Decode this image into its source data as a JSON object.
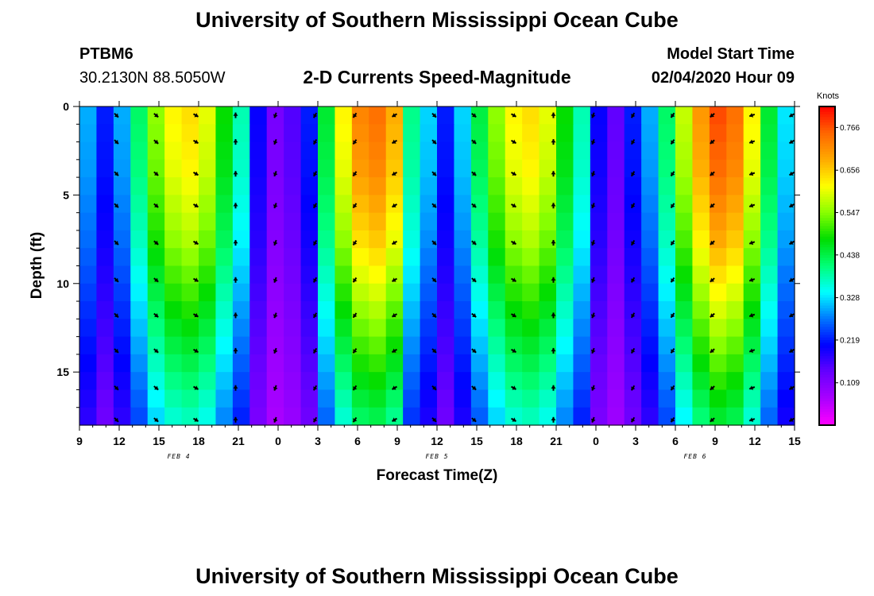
{
  "header": {
    "title": "University of Southern Mississippi Ocean Cube",
    "station_id": "PTBM6",
    "station_coords": "30.2130N 88.5050W",
    "plot_title": "2-D Currents Speed-Magnitude",
    "model_start_label": "Model Start Time",
    "model_start_value": "02/04/2020 Hour 09"
  },
  "footer": {
    "title": "University of Southern Mississippi Ocean Cube"
  },
  "colors": {
    "palette": [
      "#ff00ff",
      "#aa00ff",
      "#6600ff",
      "#0000ff",
      "#0077ff",
      "#00ffff",
      "#00ff77",
      "#00dd00",
      "#88ff00",
      "#ffff00",
      "#ffaa00",
      "#ff6600",
      "#ff0000"
    ]
  },
  "chart_data": {
    "type": "heatmap",
    "title": "2-D Currents Speed-Magnitude",
    "xlabel": "Forecast Time(Z)",
    "ylabel": "Depth (ft)",
    "x_ticks": [
      "9",
      "12",
      "15",
      "18",
      "21",
      "0",
      "3",
      "6",
      "9",
      "12",
      "15",
      "18",
      "21",
      "0",
      "3",
      "6",
      "9",
      "12",
      "15"
    ],
    "x_range_hours": [
      0,
      54
    ],
    "date_labels": [
      {
        "text": "FEB 4",
        "hour": 7.5
      },
      {
        "text": "FEB 5",
        "hour": 27
      },
      {
        "text": "FEB 6",
        "hour": 46.5
      }
    ],
    "y_ticks": [
      0,
      5,
      10,
      15
    ],
    "ylim": [
      0,
      18
    ],
    "colorbar": {
      "unit": "Knots",
      "min": 0.0,
      "max": 0.82,
      "ticks": [
        0.109,
        0.219,
        0.328,
        0.438,
        0.547,
        0.656,
        0.766
      ]
    },
    "surface_speed_knots": [
      0.3,
      0.22,
      0.3,
      0.42,
      0.55,
      0.62,
      0.64,
      0.6,
      0.48,
      0.38,
      0.2,
      0.12,
      0.15,
      0.22,
      0.45,
      0.62,
      0.72,
      0.74,
      0.68,
      0.4,
      0.32,
      0.22,
      0.32,
      0.44,
      0.55,
      0.62,
      0.64,
      0.6,
      0.48,
      0.38,
      0.2,
      0.14,
      0.22,
      0.3,
      0.42,
      0.58,
      0.7,
      0.77,
      0.74,
      0.62,
      0.45,
      0.33
    ],
    "depth_factor": [
      1.0,
      0.99,
      0.98,
      0.97,
      0.95,
      0.93,
      0.91,
      0.89,
      0.86,
      0.83,
      0.8,
      0.77,
      0.74,
      0.71,
      0.68,
      0.65,
      0.62,
      0.59
    ],
    "arrow_hours": [
      3,
      6,
      9,
      12,
      15,
      18,
      21,
      24,
      27,
      30,
      33,
      36,
      39,
      42,
      45,
      48,
      51,
      54
    ],
    "arrow_depths_ft": [
      0.5,
      2,
      3.8,
      5.6,
      7.7,
      9.8,
      11.8,
      13.8,
      15.9,
      17.7
    ],
    "arrow_direction_deg": [
      315,
      320,
      330,
      90,
      250,
      240,
      235,
      210,
      315,
      320,
      330,
      90,
      250,
      240,
      235,
      220,
      200,
      210
    ]
  }
}
